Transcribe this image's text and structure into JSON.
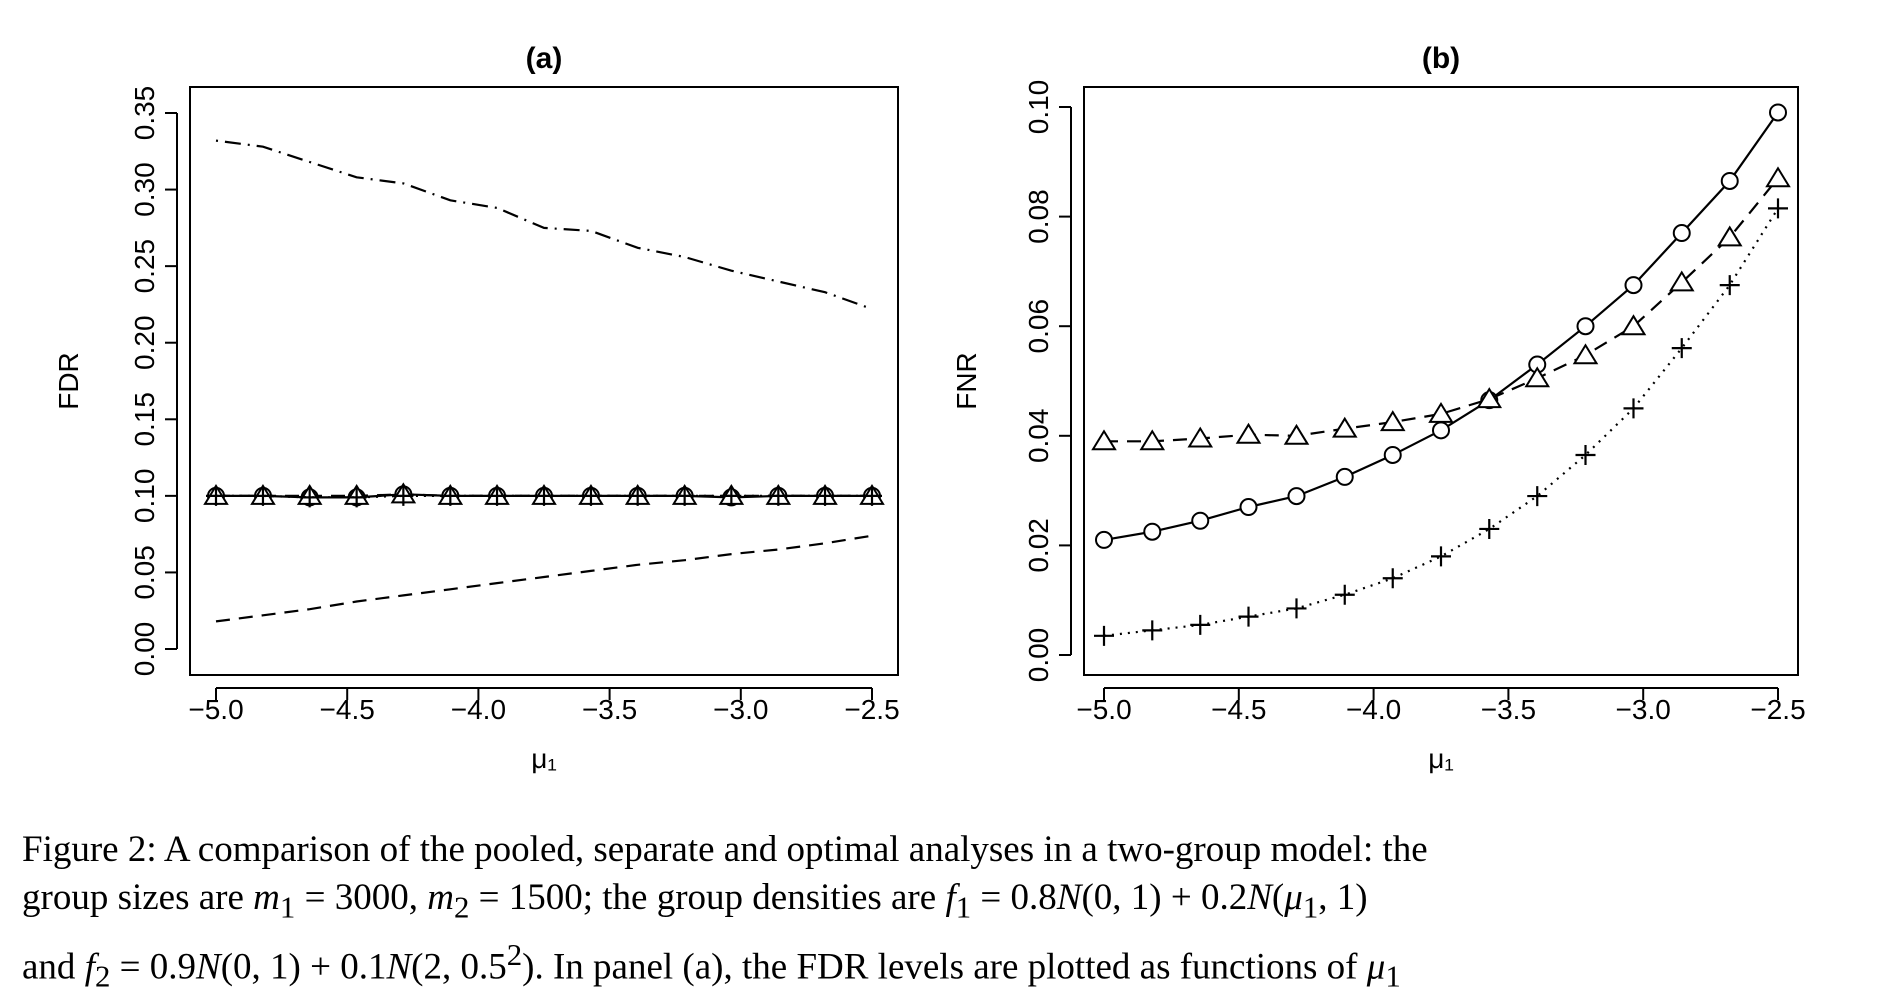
{
  "chart_data": [
    {
      "type": "line",
      "title": "(a)",
      "xlabel": "μ₁",
      "ylabel": "FDR",
      "xlim": [
        -5.0,
        -2.5
      ],
      "ylim": [
        0.0,
        0.35
      ],
      "xticks": [
        -5.0,
        -4.5,
        -4.0,
        -3.5,
        -3.0,
        -2.5
      ],
      "xtick_labels": [
        "−5.0",
        "−4.5",
        "−4.0",
        "−3.5",
        "−3.0",
        "−2.5"
      ],
      "yticks": [
        0.0,
        0.05,
        0.1,
        0.15,
        0.2,
        0.25,
        0.3,
        0.35
      ],
      "ytick_labels": [
        "0.00",
        "0.05",
        "0.10",
        "0.15",
        "0.20",
        "0.25",
        "0.30",
        "0.35"
      ],
      "grid": false,
      "legend": "none",
      "x": [
        -5.0,
        -4.821,
        -4.643,
        -4.464,
        -4.286,
        -4.107,
        -3.929,
        -3.75,
        -3.571,
        -3.393,
        -3.214,
        -3.036,
        -2.857,
        -2.679,
        -2.5
      ],
      "series": [
        {
          "line": "dotdash",
          "marker": "none",
          "color": "#000000",
          "values": [
            0.332,
            0.328,
            0.318,
            0.308,
            0.304,
            0.293,
            0.288,
            0.275,
            0.273,
            0.262,
            0.256,
            0.247,
            0.24,
            0.233,
            0.222
          ]
        },
        {
          "line": "dashed",
          "marker": "none",
          "color": "#000000",
          "values": [
            0.018,
            0.022,
            0.026,
            0.031,
            0.035,
            0.039,
            0.043,
            0.047,
            0.051,
            0.055,
            0.058,
            0.062,
            0.065,
            0.069,
            0.074
          ]
        },
        {
          "line": "solid",
          "marker": "circle",
          "color": "#000000",
          "values": [
            0.1,
            0.1,
            0.099,
            0.099,
            0.101,
            0.1,
            0.1,
            0.1,
            0.1,
            0.1,
            0.1,
            0.099,
            0.1,
            0.1,
            0.1
          ]
        },
        {
          "line": "dashed",
          "marker": "triangle",
          "color": "#000000",
          "values": [
            0.1,
            0.1,
            0.1,
            0.1,
            0.101,
            0.1,
            0.1,
            0.1,
            0.1,
            0.1,
            0.1,
            0.1,
            0.1,
            0.1,
            0.1
          ]
        },
        {
          "line": "dotted",
          "marker": "plus",
          "color": "#000000",
          "values": [
            0.1,
            0.1,
            0.099,
            0.099,
            0.1,
            0.1,
            0.1,
            0.1,
            0.1,
            0.1,
            0.1,
            0.1,
            0.1,
            0.1,
            0.1
          ]
        }
      ]
    },
    {
      "type": "line",
      "title": "(b)",
      "xlabel": "μ₁",
      "ylabel": "FNR",
      "xlim": [
        -5.0,
        -2.5
      ],
      "ylim": [
        0.0,
        0.1
      ],
      "xticks": [
        -5.0,
        -4.5,
        -4.0,
        -3.5,
        -3.0,
        -2.5
      ],
      "xtick_labels": [
        "−5.0",
        "−4.5",
        "−4.0",
        "−3.5",
        "−3.0",
        "−2.5"
      ],
      "yticks": [
        0.0,
        0.02,
        0.04,
        0.06,
        0.08,
        0.1
      ],
      "ytick_labels": [
        "0.00",
        "0.02",
        "0.04",
        "0.06",
        "0.08",
        "0.10"
      ],
      "grid": false,
      "legend": "none",
      "x": [
        -5.0,
        -4.821,
        -4.643,
        -4.464,
        -4.286,
        -4.107,
        -3.929,
        -3.75,
        -3.571,
        -3.393,
        -3.214,
        -3.036,
        -2.857,
        -2.679,
        -2.5
      ],
      "series": [
        {
          "line": "solid",
          "marker": "circle",
          "color": "#000000",
          "values": [
            0.021,
            0.0225,
            0.0245,
            0.027,
            0.029,
            0.0325,
            0.0365,
            0.041,
            0.0465,
            0.053,
            0.06,
            0.0675,
            0.077,
            0.0865,
            0.099
          ]
        },
        {
          "line": "dashed",
          "marker": "triangle",
          "color": "#000000",
          "values": [
            0.039,
            0.039,
            0.0395,
            0.0402,
            0.04,
            0.0413,
            0.0425,
            0.044,
            0.0467,
            0.0505,
            0.0547,
            0.06,
            0.068,
            0.0762,
            0.087
          ]
        },
        {
          "line": "dotted",
          "marker": "plus",
          "color": "#000000",
          "values": [
            0.0035,
            0.0045,
            0.0055,
            0.007,
            0.0085,
            0.011,
            0.014,
            0.018,
            0.023,
            0.029,
            0.0365,
            0.045,
            0.056,
            0.0675,
            0.0815
          ]
        }
      ]
    }
  ],
  "caption": {
    "line1": "Figure 2: A comparison of the pooled, separate and optimal analyses in a two-group model: the",
    "line2_a": "group sizes are ",
    "line2_b": "= 3000, ",
    "line2_c": "= 1500; the group densities are ",
    "line2_d": "= 0.8",
    "line2_e": "(0, 1) + 0.2",
    "line2_f": ", 1)",
    "line3_a": "and ",
    "line3_b": "= 0.9",
    "line3_c": "(0, 1) + 0.1",
    "line3_d": "(2, 0.5",
    "line3_e": ").  In panel (a), the FDR levels are plotted as functions of ",
    "sym_m1": "m",
    "sym_m2": "m",
    "sym_f1": "f",
    "sym_f2": "f",
    "sym_N": "N",
    "sym_mu": "μ",
    "sub_1": "1",
    "sub_2": "2",
    "sup_2": "2"
  }
}
